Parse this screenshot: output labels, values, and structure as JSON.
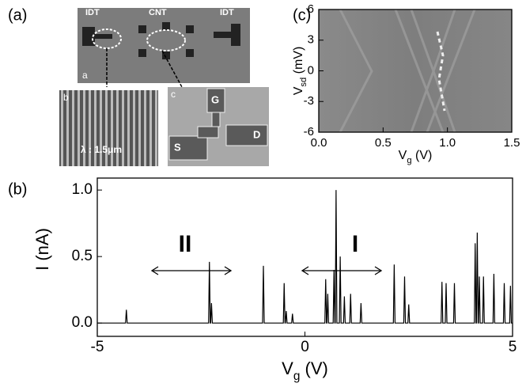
{
  "panels": {
    "a": "(a)",
    "b": "(b)",
    "c": "(c)"
  },
  "photos": {
    "main": {
      "label": "a",
      "idt_left": "IDT",
      "cnt": "CNT",
      "idt_right": "IDT"
    },
    "inset_b": {
      "label": "b",
      "wavelength": "λ : 1.5μm"
    },
    "inset_c": {
      "label": "c",
      "gate": "G",
      "source": "S",
      "drain": "D"
    }
  },
  "chart_data": [
    {
      "type": "line",
      "x_label": [
        "V",
        "g",
        " (V)"
      ],
      "y_label": "I (nA)",
      "xlim": [
        -5,
        5
      ],
      "ylim": [
        -0.1,
        1.09
      ],
      "xticks": [
        -5,
        0,
        5
      ],
      "yticks": [
        {
          "value": 0,
          "label": "0.0"
        },
        {
          "value": 0.5,
          "label": "0.5"
        },
        {
          "value": 1,
          "label": "1.0"
        }
      ],
      "annotations": [
        "II",
        "I"
      ],
      "series": [
        {
          "color": "#000000",
          "x": [
            -5,
            -4.32,
            -4.3,
            -4.28,
            -2.32,
            -2.3,
            -2.28,
            -2.27,
            -2.25,
            -2.23,
            -1.02,
            -1.0,
            -0.98,
            -0.52,
            -0.5,
            -0.48,
            -0.47,
            -0.45,
            -0.43,
            -0.32,
            -0.3,
            -0.28,
            0.48,
            0.5,
            0.52,
            0.53,
            0.55,
            0.57,
            0.68,
            0.7,
            0.72,
            0.73,
            0.75,
            0.77,
            0.83,
            0.85,
            0.87,
            0.93,
            0.95,
            0.97,
            1.08,
            1.1,
            1.12,
            1.33,
            1.35,
            1.37,
            2.13,
            2.15,
            2.17,
            2.38,
            2.4,
            2.42,
            2.48,
            2.5,
            2.52,
            3.28,
            3.3,
            3.32,
            3.38,
            3.4,
            3.42,
            3.58,
            3.6,
            3.62,
            4.08,
            4.1,
            4.12,
            4.13,
            4.15,
            4.17,
            4.18,
            4.2,
            4.22,
            4.28,
            4.3,
            4.32,
            4.53,
            4.55,
            4.57,
            4.78,
            4.8,
            4.82,
            4.93,
            4.95,
            4.97,
            5
          ],
          "values": [
            0,
            0,
            0.1,
            0,
            0,
            0.46,
            0,
            0,
            0.15,
            0,
            0,
            0.43,
            0,
            0,
            0.3,
            0,
            0,
            0.09,
            0,
            0,
            0.07,
            0,
            0,
            0.33,
            0,
            0,
            0.22,
            0,
            0,
            0.4,
            0,
            0,
            1.0,
            0,
            0,
            0.5,
            0,
            0,
            0.2,
            0,
            0,
            0.22,
            0,
            0,
            0.15,
            0,
            0,
            0.44,
            0,
            0,
            0.35,
            0,
            0,
            0.14,
            0,
            0,
            0.31,
            0,
            0,
            0.3,
            0,
            0,
            0.3,
            0,
            0,
            0.6,
            0,
            0,
            0.68,
            0,
            0,
            0.35,
            0,
            0,
            0.35,
            0,
            0,
            0.37,
            0,
            0,
            0.3,
            0,
            0,
            0.28,
            0,
            0
          ]
        }
      ]
    },
    {
      "type": "image",
      "x_label": [
        "V",
        "g",
        " (V)"
      ],
      "y_label": [
        "V",
        "sd",
        " (mV)"
      ],
      "xlim": [
        0,
        1.5
      ],
      "ylim": [
        -6,
        6
      ],
      "xticks": [
        {
          "value": 0,
          "label": "0.0"
        },
        0.5,
        {
          "value": 1,
          "label": "1.0"
        },
        1.5
      ],
      "yticks": [
        -6,
        -3,
        0,
        3,
        6
      ]
    }
  ]
}
